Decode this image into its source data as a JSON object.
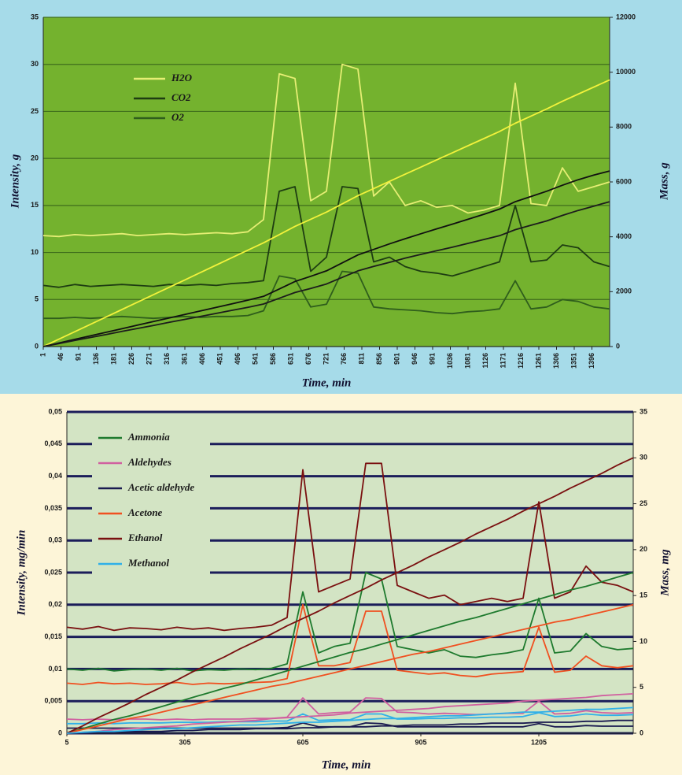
{
  "chart_data": [
    {
      "type": "line",
      "x_label": "Time, min",
      "y_label": "Intensity, g",
      "y2_label": "Mass, g",
      "x": [
        1,
        41,
        81,
        121,
        161,
        201,
        241,
        281,
        321,
        361,
        401,
        441,
        481,
        521,
        561,
        601,
        641,
        681,
        721,
        761,
        801,
        841,
        881,
        921,
        961,
        1001,
        1041,
        1081,
        1121,
        1161,
        1201,
        1241,
        1281,
        1321,
        1361,
        1401,
        1441
      ],
      "xlim": [
        1,
        1441
      ],
      "xticks": [
        1,
        46,
        91,
        136,
        181,
        226,
        271,
        316,
        361,
        406,
        451,
        496,
        541,
        586,
        631,
        676,
        721,
        766,
        811,
        856,
        901,
        946,
        991,
        1036,
        1081,
        1126,
        1171,
        1216,
        1261,
        1306,
        1351,
        1396
      ],
      "ylim": [
        0,
        35
      ],
      "yticks": [
        0,
        5,
        10,
        15,
        20,
        25,
        30,
        35
      ],
      "y2lim": [
        0,
        12000
      ],
      "y2ticks": [
        0,
        2000,
        4000,
        6000,
        8000,
        10000,
        12000
      ],
      "grid": true,
      "series": [
        {
          "name": "H2O",
          "color": "#e6ee74",
          "values": [
            11.8,
            11.7,
            11.9,
            11.8,
            11.9,
            12.0,
            11.8,
            11.9,
            12.0,
            11.9,
            12.0,
            12.1,
            12.0,
            12.2,
            13.5,
            29.0,
            28.5,
            15.5,
            16.5,
            30.0,
            29.5,
            16.0,
            17.5,
            15.0,
            15.5,
            14.8,
            15.0,
            14.2,
            14.5,
            15.0,
            28.0,
            15.2,
            15.0,
            19.0,
            16.5,
            17.0,
            17.5
          ]
        },
        {
          "name": "CO2",
          "color": "#1e3d12",
          "values": [
            6.5,
            6.3,
            6.6,
            6.4,
            6.5,
            6.6,
            6.5,
            6.4,
            6.6,
            6.5,
            6.6,
            6.5,
            6.7,
            6.8,
            7.0,
            16.5,
            17.0,
            8.0,
            9.5,
            17.0,
            16.8,
            9.0,
            9.5,
            8.5,
            8.0,
            7.8,
            7.5,
            8.0,
            8.5,
            9.0,
            15.0,
            9.0,
            9.2,
            10.8,
            10.5,
            9.0,
            8.5
          ]
        },
        {
          "name": "O2",
          "color": "#2f5e1c",
          "values": [
            3.0,
            3.0,
            3.1,
            3.0,
            3.1,
            3.2,
            3.1,
            3.0,
            3.1,
            3.2,
            3.1,
            3.2,
            3.2,
            3.3,
            3.8,
            7.5,
            7.2,
            4.2,
            4.5,
            8.0,
            7.8,
            4.2,
            4.0,
            3.9,
            3.8,
            3.6,
            3.5,
            3.7,
            3.8,
            4.0,
            7.0,
            4.0,
            4.2,
            5.0,
            4.8,
            4.2,
            4.0
          ]
        },
        {
          "color": "#f2f23c",
          "axis": "y2",
          "values": [
            0,
            270,
            540,
            810,
            1080,
            1350,
            1620,
            1890,
            2160,
            2430,
            2700,
            2970,
            3240,
            3510,
            3780,
            4080,
            4380,
            4640,
            4900,
            5200,
            5500,
            5760,
            6020,
            6280,
            6540,
            6800,
            7060,
            7320,
            7580,
            7840,
            8140,
            8400,
            8660,
            8940,
            9200,
            9460,
            9720
          ]
        },
        {
          "color": "#101010",
          "axis": "y2",
          "values": [
            0,
            130,
            260,
            390,
            520,
            650,
            780,
            910,
            1040,
            1170,
            1300,
            1430,
            1560,
            1690,
            1830,
            2100,
            2370,
            2560,
            2760,
            3050,
            3340,
            3540,
            3740,
            3930,
            4110,
            4290,
            4460,
            4640,
            4820,
            5010,
            5280,
            5470,
            5660,
            5880,
            6080,
            6250,
            6400
          ]
        },
        {
          "color": "#1c1c1c",
          "axis": "y2",
          "values": [
            0,
            110,
            220,
            330,
            440,
            550,
            660,
            770,
            880,
            990,
            1100,
            1210,
            1320,
            1430,
            1550,
            1760,
            1970,
            2120,
            2280,
            2520,
            2760,
            2920,
            3070,
            3220,
            3360,
            3490,
            3620,
            3760,
            3900,
            4040,
            4260,
            4420,
            4580,
            4780,
            4960,
            5120,
            5280
          ]
        }
      ]
    },
    {
      "type": "line",
      "x_label": "Time, min",
      "y_label": "Intensity, mg/min",
      "y2_label": "Mass, mg",
      "x": [
        5,
        45,
        85,
        125,
        165,
        205,
        245,
        285,
        325,
        365,
        405,
        445,
        485,
        525,
        565,
        605,
        645,
        685,
        725,
        765,
        805,
        845,
        885,
        925,
        965,
        1005,
        1045,
        1085,
        1125,
        1165,
        1205,
        1245,
        1285,
        1325,
        1365,
        1405,
        1445
      ],
      "xlim": [
        5,
        1445
      ],
      "xticks": [
        5,
        305,
        605,
        905,
        1205
      ],
      "ylim": [
        0,
        0.05
      ],
      "yticks": [
        0,
        {
          "value": 0.005,
          "label": "0,005"
        },
        {
          "value": 0.01,
          "label": "0,01"
        },
        {
          "value": 0.015,
          "label": "0,015"
        },
        {
          "value": 0.02,
          "label": "0,02"
        },
        {
          "value": 0.025,
          "label": "0,025"
        },
        {
          "value": 0.03,
          "label": "0,03"
        },
        {
          "value": 0.035,
          "label": "0,035"
        },
        {
          "value": 0.04,
          "label": "0,04"
        },
        {
          "value": 0.045,
          "label": "0,045"
        },
        {
          "value": 0.05,
          "label": "0,05"
        }
      ],
      "y2lim": [
        0,
        35
      ],
      "y2ticks": [
        0,
        5,
        10,
        15,
        20,
        25,
        30,
        35
      ],
      "grid": true,
      "series": [
        {
          "name": "Ammonia",
          "color": "#1e7a2e",
          "values": [
            0.01,
            0.0098,
            0.0101,
            0.0097,
            0.0099,
            0.01,
            0.0098,
            0.0101,
            0.0097,
            0.0099,
            0.0098,
            0.01,
            0.0099,
            0.0101,
            0.0108,
            0.022,
            0.0125,
            0.0135,
            0.014,
            0.025,
            0.024,
            0.0135,
            0.013,
            0.0125,
            0.013,
            0.012,
            0.0118,
            0.0122,
            0.0125,
            0.013,
            0.021,
            0.0125,
            0.0128,
            0.0155,
            0.0135,
            0.013,
            0.0132
          ]
        },
        {
          "name": "Aldehydes",
          "color": "#d060a0",
          "values": [
            0.0022,
            0.0021,
            0.0022,
            0.0021,
            0.0022,
            0.0022,
            0.0021,
            0.0022,
            0.0021,
            0.0022,
            0.0022,
            0.0022,
            0.0023,
            0.0023,
            0.0025,
            0.0055,
            0.003,
            0.0032,
            0.0033,
            0.0055,
            0.0054,
            0.0033,
            0.0032,
            0.003,
            0.0031,
            0.003,
            0.0029,
            0.003,
            0.0031,
            0.0031,
            0.005,
            0.003,
            0.0031,
            0.0035,
            0.0032,
            0.0031,
            0.0032
          ]
        },
        {
          "name": "Acetic aldehyde",
          "color": "#1a1a50",
          "values": [
            0.0008,
            0.0008,
            0.0008,
            0.0008,
            0.0008,
            0.0008,
            0.0008,
            0.0008,
            0.0008,
            0.0008,
            0.0008,
            0.0008,
            0.0008,
            0.0008,
            0.0009,
            0.0016,
            0.001,
            0.001,
            0.001,
            0.0016,
            0.0015,
            0.001,
            0.001,
            0.001,
            0.001,
            0.001,
            0.001,
            0.001,
            0.001,
            0.001,
            0.0015,
            0.001,
            0.001,
            0.0012,
            0.0011,
            0.0011,
            0.0011
          ]
        },
        {
          "name": "Acetone",
          "color": "#f05020",
          "values": [
            0.0078,
            0.0076,
            0.0079,
            0.0077,
            0.0078,
            0.0076,
            0.0077,
            0.0079,
            0.0076,
            0.0078,
            0.0077,
            0.0078,
            0.0079,
            0.008,
            0.0085,
            0.02,
            0.0105,
            0.0105,
            0.011,
            0.019,
            0.019,
            0.0098,
            0.0095,
            0.0092,
            0.0094,
            0.009,
            0.0088,
            0.0092,
            0.0094,
            0.0096,
            0.0165,
            0.0095,
            0.0098,
            0.012,
            0.0105,
            0.0102,
            0.0105
          ]
        },
        {
          "name": "Ethanol",
          "color": "#7a1010",
          "values": [
            0.0165,
            0.0162,
            0.0166,
            0.016,
            0.0164,
            0.0163,
            0.0161,
            0.0165,
            0.0162,
            0.0164,
            0.016,
            0.0163,
            0.0165,
            0.0168,
            0.018,
            0.041,
            0.022,
            0.023,
            0.024,
            0.042,
            0.042,
            0.023,
            0.022,
            0.021,
            0.0215,
            0.02,
            0.0205,
            0.021,
            0.0205,
            0.021,
            0.036,
            0.021,
            0.022,
            0.026,
            0.0235,
            0.023,
            0.022
          ]
        },
        {
          "name": "Methanol",
          "color": "#30b0e8",
          "values": [
            0.0015,
            0.0015,
            0.0016,
            0.0015,
            0.0016,
            0.0016,
            0.0016,
            0.0017,
            0.0017,
            0.0017,
            0.0018,
            0.0018,
            0.0018,
            0.0019,
            0.0019,
            0.003,
            0.002,
            0.0021,
            0.0021,
            0.003,
            0.003,
            0.0022,
            0.0022,
            0.0023,
            0.0023,
            0.0024,
            0.0024,
            0.0025,
            0.0025,
            0.0026,
            0.0032,
            0.0026,
            0.0027,
            0.003,
            0.0028,
            0.0028,
            0.0029
          ]
        },
        {
          "color": "#1e7a2e",
          "axis": "y2",
          "values": [
            0,
            0.5,
            1.0,
            1.5,
            1.9,
            2.4,
            2.9,
            3.4,
            3.9,
            4.4,
            4.9,
            5.3,
            5.8,
            6.3,
            6.8,
            7.3,
            7.8,
            8.3,
            8.8,
            9.2,
            9.7,
            10.2,
            10.7,
            11.2,
            11.7,
            12.2,
            12.6,
            13.1,
            13.6,
            14.1,
            14.6,
            15.1,
            15.6,
            16.0,
            16.5,
            17.0,
            17.5
          ]
        },
        {
          "color": "#d060a0",
          "axis": "y2",
          "values": [
            0,
            0.1,
            0.2,
            0.4,
            0.5,
            0.6,
            0.7,
            0.8,
            1.0,
            1.1,
            1.2,
            1.3,
            1.4,
            1.6,
            1.7,
            1.8,
            1.9,
            2.0,
            2.2,
            2.3,
            2.4,
            2.5,
            2.6,
            2.7,
            2.9,
            3.0,
            3.1,
            3.2,
            3.3,
            3.5,
            3.6,
            3.7,
            3.8,
            3.9,
            4.1,
            4.2,
            4.3
          ]
        },
        {
          "color": "#1a1a50",
          "axis": "y2",
          "values": [
            0,
            0,
            0.1,
            0.1,
            0.2,
            0.2,
            0.2,
            0.3,
            0.3,
            0.4,
            0.4,
            0.4,
            0.5,
            0.5,
            0.5,
            0.6,
            0.6,
            0.7,
            0.7,
            0.7,
            0.8,
            0.8,
            0.9,
            0.9,
            0.9,
            1.0,
            1.0,
            1.1,
            1.1,
            1.1,
            1.2,
            1.2,
            1.2,
            1.3,
            1.3,
            1.4,
            1.4
          ]
        },
        {
          "color": "#f05020",
          "axis": "y2",
          "values": [
            0,
            0.4,
            0.8,
            1.2,
            1.6,
            1.9,
            2.3,
            2.7,
            3.1,
            3.5,
            3.9,
            4.3,
            4.7,
            5.1,
            5.4,
            5.8,
            6.2,
            6.6,
            7.0,
            7.4,
            7.8,
            8.2,
            8.6,
            8.9,
            9.3,
            9.7,
            10.1,
            10.5,
            10.9,
            11.3,
            11.7,
            12.1,
            12.4,
            12.8,
            13.2,
            13.6,
            14.0
          ]
        },
        {
          "color": "#7a1010",
          "axis": "y2",
          "values": [
            0,
            0.8,
            1.7,
            2.5,
            3.3,
            4.2,
            5.0,
            5.8,
            6.7,
            7.5,
            8.3,
            9.2,
            10.0,
            10.8,
            11.7,
            12.5,
            13.3,
            14.2,
            15.0,
            15.8,
            16.7,
            17.5,
            18.3,
            19.2,
            20.0,
            20.8,
            21.7,
            22.5,
            23.3,
            24.2,
            25.0,
            25.8,
            26.7,
            27.5,
            28.3,
            29.2,
            30.0
          ]
        },
        {
          "color": "#30b0e8",
          "axis": "y2",
          "values": [
            0,
            0.1,
            0.2,
            0.2,
            0.3,
            0.4,
            0.5,
            0.5,
            0.6,
            0.7,
            0.8,
            0.9,
            0.9,
            1.0,
            1.1,
            1.2,
            1.2,
            1.3,
            1.4,
            1.5,
            1.6,
            1.6,
            1.7,
            1.8,
            1.9,
            1.9,
            2.0,
            2.1,
            2.2,
            2.3,
            2.3,
            2.4,
            2.5,
            2.6,
            2.6,
            2.7,
            2.8
          ]
        }
      ]
    }
  ]
}
